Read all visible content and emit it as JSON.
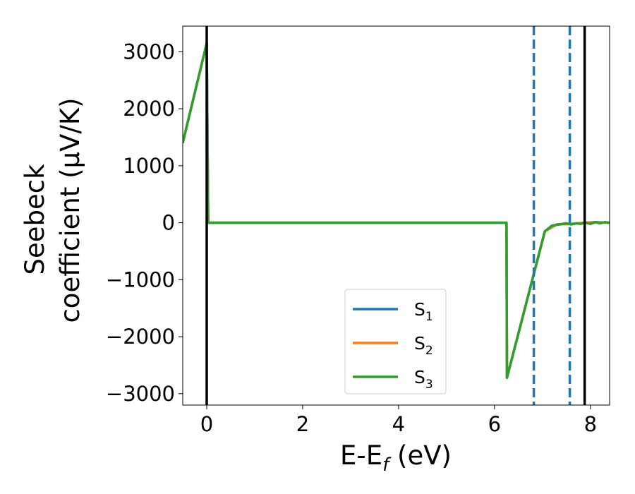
{
  "chart_data": {
    "type": "line",
    "title": "",
    "xlabel": {
      "main": "E-E",
      "sub": "f",
      "suffix": " (eV)"
    },
    "ylabel": {
      "line1": "Seebeck",
      "line2": "coefficient  (μV/K)"
    },
    "xlim": [
      -0.5,
      8.4
    ],
    "ylim": [
      -3200,
      3450
    ],
    "xticks": [
      0,
      2,
      4,
      6,
      8
    ],
    "xtick_labels": [
      "0",
      "2",
      "4",
      "6",
      "8"
    ],
    "yticks": [
      -3000,
      -2000,
      -1000,
      0,
      1000,
      2000,
      3000
    ],
    "ytick_labels": [
      "−3000",
      "−2000",
      "−1000",
      "0",
      "1000",
      "2000",
      "3000"
    ],
    "grid": false,
    "legend_position": "lower-center",
    "series": [
      {
        "name": {
          "main": "S",
          "sub": "1"
        },
        "color": "#1f77b4",
        "points": [
          [
            -0.5,
            1400
          ],
          [
            0.0,
            3150
          ],
          [
            0.03,
            0
          ],
          [
            6.25,
            0
          ],
          [
            6.26,
            -2720
          ],
          [
            7.05,
            -150
          ],
          [
            7.3,
            -30
          ],
          [
            7.6,
            -20
          ],
          [
            7.9,
            0
          ],
          [
            8.1,
            10
          ],
          [
            8.4,
            0
          ]
        ]
      },
      {
        "name": {
          "main": "S",
          "sub": "2"
        },
        "color": "#ff7f0e",
        "points": [
          [
            -0.5,
            1400
          ],
          [
            0.0,
            3150
          ],
          [
            0.03,
            0
          ],
          [
            6.25,
            0
          ],
          [
            6.26,
            -2720
          ],
          [
            7.05,
            -150
          ],
          [
            7.3,
            -30
          ],
          [
            7.6,
            -20
          ],
          [
            7.9,
            0
          ],
          [
            8.1,
            10
          ],
          [
            8.4,
            0
          ]
        ]
      },
      {
        "name": {
          "main": "S",
          "sub": "3"
        },
        "color": "#2ca02c",
        "points": [
          [
            -0.5,
            1400
          ],
          [
            0.0,
            3150
          ],
          [
            0.03,
            0
          ],
          [
            6.25,
            0
          ],
          [
            6.26,
            -2720
          ],
          [
            7.05,
            -150
          ],
          [
            7.2,
            -50
          ],
          [
            7.35,
            -30
          ],
          [
            7.5,
            -10
          ],
          [
            7.6,
            -30
          ],
          [
            7.7,
            -10
          ],
          [
            7.8,
            -20
          ],
          [
            7.9,
            0
          ],
          [
            8.0,
            -20
          ],
          [
            8.1,
            10
          ],
          [
            8.2,
            -10
          ],
          [
            8.3,
            10
          ],
          [
            8.4,
            0
          ]
        ]
      }
    ],
    "vlines": [
      {
        "x": 0,
        "color": "#000000",
        "style": "solid"
      },
      {
        "x": 7.88,
        "color": "#000000",
        "style": "solid"
      },
      {
        "x": 6.82,
        "color": "#1f77b4",
        "style": "dashed"
      },
      {
        "x": 7.57,
        "color": "#1f77b4",
        "style": "dashed"
      }
    ]
  }
}
